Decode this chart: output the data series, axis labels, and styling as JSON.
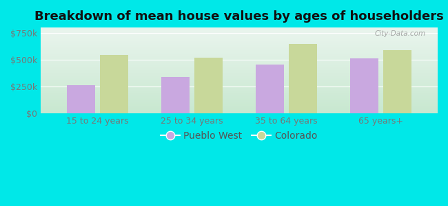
{
  "title": "Breakdown of mean house values by ages of householders",
  "categories": [
    "15 to 24 years",
    "25 to 34 years",
    "35 to 64 years",
    "65 years+"
  ],
  "pueblo_west": [
    265000,
    340000,
    455000,
    510000
  ],
  "colorado": [
    545000,
    520000,
    650000,
    590000
  ],
  "bar_color_pueblo": "#c9a8e0",
  "bar_color_colorado": "#c8d89a",
  "background_color": "#00e8e8",
  "plot_bg_top": "#eaf5ee",
  "plot_bg_bottom": "#c8e8d0",
  "ylim": [
    0,
    800000
  ],
  "yticks": [
    0,
    250000,
    500000,
    750000
  ],
  "ytick_labels": [
    "$0",
    "$250k",
    "$500k",
    "$750k"
  ],
  "legend_labels": [
    "Pueblo West",
    "Colorado"
  ],
  "watermark": "City-Data.com",
  "title_fontsize": 13,
  "tick_fontsize": 9,
  "legend_fontsize": 10,
  "bar_width": 0.3,
  "bar_gap": 0.05
}
